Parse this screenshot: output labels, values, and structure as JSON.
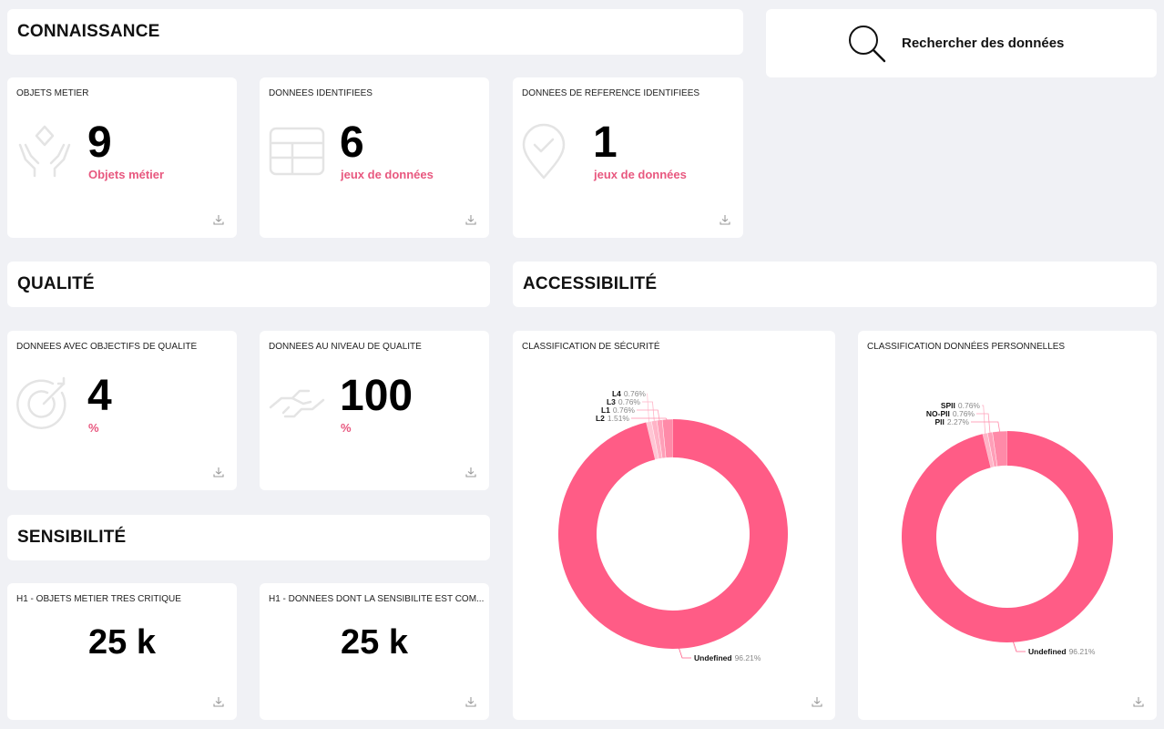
{
  "sections": {
    "connaissance": "CONNAISSANCE",
    "qualite": "QUALITÉ",
    "accessibilite": "ACCESSIBILITÉ",
    "sensibilite": "SENSIBILITÉ"
  },
  "search": {
    "label": "Rechercher des données"
  },
  "kpis": {
    "objets_metier": {
      "label": "OBJETS MÉTIER",
      "value": "9",
      "unit": "Objets métier",
      "icon": "hands-diamond-icon"
    },
    "donnees_identifiees": {
      "label": "DONNÉES IDENTIFIÉES",
      "value": "6",
      "unit": "jeux de données",
      "icon": "table-icon"
    },
    "donnees_reference": {
      "label": "DONNÉES DE RÉFÉRENCE IDENTIFIÉES",
      "value": "1",
      "unit": "jeux de données",
      "icon": "location-check-icon"
    },
    "objectifs_qualite": {
      "label": "DONNÉES AVEC OBJECTIFS DE QUALITÉ",
      "value": "4",
      "unit": "%",
      "icon": "target-icon"
    },
    "niveau_qualite": {
      "label": "DONNÉES AU NIVEAU DE QUALITÉ",
      "value": "100",
      "unit": "%",
      "icon": "handshake-icon"
    },
    "h1_objets": {
      "label": "H1 - OBJETS MÉTIER TRÈS CRITIQUE",
      "value": "25 k"
    },
    "h1_donnees": {
      "label": "H1 - DONNÉES DONT LA SENSIBILITÉ EST COM..."
    }
  },
  "h1_donnees_value": "25 k",
  "colors": {
    "accent": "#ff5c86",
    "accent_text": "#e8587f",
    "background": "#f0f1f5"
  },
  "chart_data": [
    {
      "type": "pie",
      "title": "CLASSIFICATION DE SÉCURITÉ",
      "slices": [
        {
          "label": "Undefined",
          "value": 96.21,
          "pct": "96.21%"
        },
        {
          "label": "L2",
          "value": 1.51,
          "pct": "1.51%"
        },
        {
          "label": "L1",
          "value": 0.76,
          "pct": "0.76%"
        },
        {
          "label": "L3",
          "value": 0.76,
          "pct": "0.76%"
        },
        {
          "label": "L4",
          "value": 0.76,
          "pct": "0.76%"
        }
      ]
    },
    {
      "type": "pie",
      "title": "CLASSIFICATION DONNÉES PERSONNELLES",
      "slices": [
        {
          "label": "Undefined",
          "value": 96.21,
          "pct": "96.21%"
        },
        {
          "label": "PII",
          "value": 2.27,
          "pct": "2.27%"
        },
        {
          "label": "NO-PII",
          "value": 0.76,
          "pct": "0.76%"
        },
        {
          "label": "SPII",
          "value": 0.76,
          "pct": "0.76%"
        }
      ]
    }
  ]
}
